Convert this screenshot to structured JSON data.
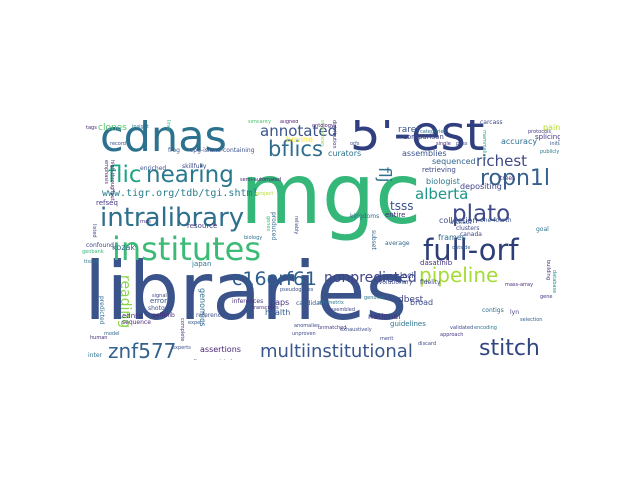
{
  "words": [
    {
      "id": "libraries",
      "text": "libraries",
      "color": "#3a538b"
    },
    {
      "id": "mgc",
      "text": "mgc",
      "color": "#35b779"
    },
    {
      "id": "cdnas",
      "text": "cdnas",
      "color": "#2c728e"
    },
    {
      "id": "5est",
      "text": "5'-est",
      "color": "#2f3f7f"
    },
    {
      "id": "institutes",
      "text": "institutes",
      "color": "#3bbb75"
    },
    {
      "id": "fullorf",
      "text": "full-orf",
      "color": "#2c3e75"
    },
    {
      "id": "intralibrary",
      "text": "intralibrary",
      "color": "#2e6f8e"
    },
    {
      "id": "znf577",
      "text": "znf577",
      "color": "#33628d"
    },
    {
      "id": "stitch",
      "text": "stitch",
      "color": "#31467f"
    },
    {
      "id": "multiinstitutional",
      "text": "multiinstitutional",
      "color": "#39568c"
    },
    {
      "id": "nearing",
      "text": "nearing",
      "color": "#2a788e"
    },
    {
      "id": "bflics",
      "text": "bflics",
      "color": "#2f6c8e"
    },
    {
      "id": "ropn1l",
      "text": "ropn1l",
      "color": "#355f8d"
    },
    {
      "id": "plato",
      "text": "plato",
      "color": "#3e4a89"
    },
    {
      "id": "pipeline",
      "text": "pipeline",
      "color": "#a5db36"
    },
    {
      "id": "c16orf61",
      "text": "c16orf61",
      "color": "#2d5e8d"
    },
    {
      "id": "flic",
      "text": "flic",
      "color": "#20a486"
    },
    {
      "id": "annotated",
      "text": "annotated",
      "color": "#3a548c"
    },
    {
      "id": "richest",
      "text": "richest",
      "color": "#3f4788"
    },
    {
      "id": "alberta",
      "text": "alberta",
      "color": "#1f968b"
    },
    {
      "id": "nonpredicted",
      "text": "nonpredicted",
      "color": "#404588"
    },
    {
      "id": "reading",
      "text": "reading",
      "color": "#8bd646"
    },
    {
      "id": "flj",
      "text": "flj",
      "color": "#2c718e"
    },
    {
      "id": "tsss",
      "text": "tsss",
      "color": "#3b518b"
    },
    {
      "id": "url",
      "text": "www.tigr.org/tdb/tgi.shtml",
      "color": "#287c8e"
    },
    {
      "id": "assertions",
      "text": "assertions",
      "color": "#482374"
    },
    {
      "id": "collection",
      "text": "collection",
      "color": "#3e4c8a"
    },
    {
      "id": "depositing",
      "text": "depositing",
      "color": "#404688"
    },
    {
      "id": "sequenced",
      "text": "sequenced",
      "color": "#33638d"
    },
    {
      "id": "assemblies",
      "text": "assemblies",
      "color": "#3b518b"
    },
    {
      "id": "biologist",
      "text": "biologist",
      "color": "#2a778e"
    },
    {
      "id": "accuracy",
      "text": "accuracy",
      "color": "#2e6e8e"
    },
    {
      "id": "health",
      "text": "health",
      "color": "#365c8d"
    },
    {
      "id": "paps",
      "text": "paps",
      "color": "#453781"
    },
    {
      "id": "national",
      "text": "national",
      "color": "#46327e"
    },
    {
      "id": "frames",
      "text": "frames",
      "color": "#2e6e8e"
    },
    {
      "id": "clones",
      "text": "clones",
      "color": "#52c569"
    },
    {
      "id": "curators",
      "text": "curators",
      "color": "#2c728e"
    },
    {
      "id": "rarer",
      "text": "rarer",
      "color": "#3b528b"
    },
    {
      "id": "paint",
      "text": "paint",
      "color": "#b5de2b"
    },
    {
      "id": "genomics",
      "text": "genomics",
      "color": "#2d708e"
    },
    {
      "id": "dbest",
      "text": "dbest",
      "color": "#414487"
    },
    {
      "id": "resource",
      "text": "resource",
      "color": "#433e85"
    },
    {
      "id": "errors",
      "text": "errors",
      "color": "#3a548c"
    },
    {
      "id": "refseq",
      "text": "refseq",
      "color": "#443a83"
    },
    {
      "id": "kozak",
      "text": "kozak",
      "color": "#32648e"
    },
    {
      "id": "ednra",
      "text": "ednra",
      "color": "#46307e"
    },
    {
      "id": "japan",
      "text": "japan",
      "color": "#2a788e"
    },
    {
      "id": "sequence",
      "text": "sequence",
      "color": "#482878"
    },
    {
      "id": "bovine",
      "text": "bovine",
      "color": "#fde725"
    },
    {
      "id": "comparison",
      "text": "comparison",
      "color": "#3f4889"
    },
    {
      "id": "splicing",
      "text": "splicing",
      "color": "#443983"
    },
    {
      "id": "retrieving",
      "text": "retrieving",
      "color": "#3e4989"
    },
    {
      "id": "entire",
      "text": "entire",
      "color": "#472d7b"
    },
    {
      "id": "guidelines",
      "text": "guidelines",
      "color": "#2b758e"
    },
    {
      "id": "broad",
      "text": "broad",
      "color": "#3d4d8a"
    },
    {
      "id": "loci",
      "text": "loci",
      "color": "#3e4a89"
    },
    {
      "id": "dasatinib",
      "text": "dasatinib",
      "color": "#46337f"
    },
    {
      "id": "canada",
      "text": "canada",
      "color": "#404588"
    },
    {
      "id": "evolutionary",
      "text": "evolutionary",
      "color": "#3d4e8a"
    },
    {
      "id": "frog",
      "text": "frog",
      "color": "#38588c"
    },
    {
      "id": "cpg",
      "text": "cpg-island-containing",
      "color": "#3b518b"
    },
    {
      "id": "enriched",
      "text": "enriched",
      "color": "#3a548c"
    },
    {
      "id": "skillfully",
      "text": "skillfully",
      "color": "#3e4a89"
    },
    {
      "id": "shotgun",
      "text": "shotgun",
      "color": "#3e4c8a"
    },
    {
      "id": "geftinib",
      "text": "geftinib",
      "color": "#472f7d"
    },
    {
      "id": "reference",
      "text": "reference",
      "color": "#3d4e8a"
    },
    {
      "id": "inferences",
      "text": "inferences",
      "color": "#46327e"
    },
    {
      "id": "semiautomated",
      "text": "semi-automated",
      "color": "#481f70"
    },
    {
      "id": "softwareassisted",
      "text": "software-assisted",
      "color": "#46337f"
    },
    {
      "id": "inter",
      "text": "inter",
      "color": "#2c718e"
    },
    {
      "id": "confound",
      "text": "confound",
      "color": "#3e4989"
    },
    {
      "id": "onefourth",
      "text": "one-fourth",
      "color": "#3b528b"
    },
    {
      "id": "goal",
      "text": "goal",
      "color": "#2c728e"
    },
    {
      "id": "lyn",
      "text": "lyn",
      "color": "#433e85"
    },
    {
      "id": "massarray",
      "text": "mass-array",
      "color": "#472c7a"
    },
    {
      "id": "merit",
      "text": "merit",
      "color": "#3f4889"
    },
    {
      "id": "approach",
      "text": "approach",
      "color": "#453882"
    },
    {
      "id": "average",
      "text": "average",
      "color": "#31678e"
    },
    {
      "id": "artifact",
      "text": "artifact",
      "color": "#3b528b"
    },
    {
      "id": "clusters",
      "text": "clusters",
      "color": "#3e4989"
    },
    {
      "id": "trees",
      "text": "trees",
      "color": "#453581"
    },
    {
      "id": "fidelity",
      "text": "fidelity",
      "color": "#404588"
    },
    {
      "id": "kingdoms",
      "text": "kingdoms",
      "color": "#31688e"
    },
    {
      "id": "predicted",
      "text": "predicted",
      "color": "#2e6e8e"
    },
    {
      "id": "highthroughput",
      "text": "high-throughput",
      "color": "#481a6c"
    },
    {
      "id": "produced",
      "text": "produced",
      "color": "#31688e"
    },
    {
      "id": "candidate",
      "text": "candidate",
      "color": "#38588c"
    },
    {
      "id": "affymetrix",
      "text": "affymetrix",
      "color": "#2a788e"
    },
    {
      "id": "subset",
      "text": "subset",
      "color": "#32648e"
    },
    {
      "id": "sequences",
      "text": "sequences",
      "color": "#8bd646"
    },
    {
      "id": "complete",
      "text": "complete",
      "color": "#46327e"
    },
    {
      "id": "carcass",
      "text": "carcass",
      "color": "#3f4788"
    },
    {
      "id": "lines",
      "text": "lines",
      "color": "#29af7f"
    },
    {
      "id": "genes",
      "text": "genes",
      "color": "#3fbc73"
    },
    {
      "id": "mammalian",
      "text": "mammalian",
      "color": "#1fa088"
    },
    {
      "id": "tags",
      "text": "tags",
      "color": "#482677"
    },
    {
      "id": "record",
      "text": "record",
      "color": "#3e4989"
    },
    {
      "id": "insight",
      "text": "insight",
      "color": "#2c728e"
    },
    {
      "id": "building",
      "text": "building",
      "color": "#472e7c"
    },
    {
      "id": "experts",
      "text": "experts",
      "color": "#3b518b"
    },
    {
      "id": "project",
      "text": "project",
      "color": "#b5de2b"
    },
    {
      "id": "contigs",
      "text": "contigs",
      "color": "#2e6e8e"
    },
    {
      "id": "expert",
      "text": "expert",
      "color": "#365d8d"
    },
    {
      "id": "created",
      "text": "created",
      "color": "#3e4a89"
    },
    {
      "id": "publicly",
      "text": "publicly",
      "color": "#2a788e"
    },
    {
      "id": "database",
      "text": "database",
      "color": "#21918c"
    },
    {
      "id": "single",
      "text": "single",
      "color": "#482677"
    },
    {
      "id": "pass",
      "text": "pass",
      "color": "#3e4989"
    },
    {
      "id": "categories",
      "text": "categories",
      "color": "#2c728e"
    },
    {
      "id": "initial",
      "text": "initial",
      "color": "#38588c"
    },
    {
      "id": "biology",
      "text": "biology",
      "color": "#2e6e8e"
    },
    {
      "id": "reliably",
      "text": "reliably",
      "color": "#3e4989"
    },
    {
      "id": "protocols",
      "text": "protocols",
      "color": "#453882"
    },
    {
      "id": "emphasis",
      "text": "emphasis",
      "color": "#481f70"
    },
    {
      "id": "aligned",
      "text": "aligned",
      "color": "#48186a"
    },
    {
      "id": "ontology",
      "text": "ontology",
      "color": "#482374"
    },
    {
      "id": "distribution",
      "text": "distribution",
      "color": "#46307e"
    },
    {
      "id": "rnas",
      "text": "rnas",
      "color": "#472d7b"
    },
    {
      "id": "outside",
      "text": "outside",
      "color": "#32648e"
    },
    {
      "id": "cdna",
      "text": "cdna",
      "color": "#3b528b"
    },
    {
      "id": "assembled",
      "text": "assembled",
      "color": "#404588"
    },
    {
      "id": "genome",
      "text": "genome",
      "color": "#2c718e"
    },
    {
      "id": "validated",
      "text": "validated",
      "color": "#3e4c8a"
    },
    {
      "id": "encoding",
      "text": "encoding",
      "color": "#2c728e"
    },
    {
      "id": "exhaustively",
      "text": "exhaustively",
      "color": "#3d4e8a"
    },
    {
      "id": "discard",
      "text": "discard",
      "color": "#3e4a89"
    },
    {
      "id": "selection",
      "text": "selection",
      "color": "#33638d"
    },
    {
      "id": "gene",
      "text": "gene",
      "color": "#453781"
    },
    {
      "id": "listed",
      "text": "listed",
      "color": "#3e4989"
    },
    {
      "id": "genbank",
      "text": "genbank",
      "color": "#35b779"
    },
    {
      "id": "human",
      "text": "human",
      "color": "#482878"
    },
    {
      "id": "model",
      "text": "model",
      "color": "#31688e"
    },
    {
      "id": "signal",
      "text": "signal",
      "color": "#3e4a89"
    },
    {
      "id": "transcripts",
      "text": "transcripts",
      "color": "#46327e"
    },
    {
      "id": "pseudogenes",
      "text": "pseudogenes",
      "color": "#3b528b"
    },
    {
      "id": "anomalies",
      "text": "anomalies",
      "color": "#3e4989"
    },
    {
      "id": "unmatched",
      "text": "unmatched",
      "color": "#453882"
    },
    {
      "id": "unproven",
      "text": "unproven",
      "color": "#3e4c8a"
    },
    {
      "id": "similarity",
      "text": "similarity",
      "color": "#4ac16d"
    },
    {
      "id": "orfs",
      "text": "orfs",
      "color": "#3b528b"
    },
    {
      "id": "tissue",
      "text": "tissue",
      "color": "#2c728e"
    }
  ]
}
